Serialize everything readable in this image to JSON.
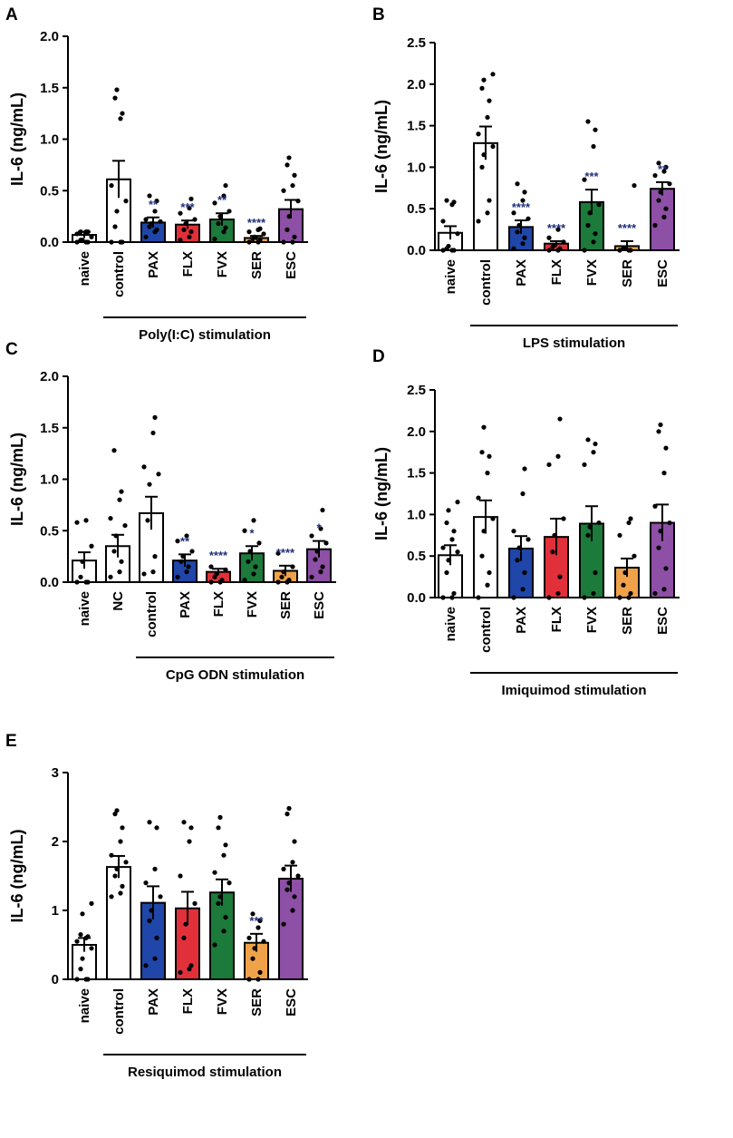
{
  "colors": {
    "naive": "#ffffff",
    "control": "#ffffff",
    "NC": "#ffffff",
    "PAX": "#1f46a8",
    "FLX": "#e2303a",
    "FVX": "#1c7a3a",
    "SER": "#f0a24a",
    "ESC": "#8e4fa6",
    "significance": "#1f2f7a",
    "axis": "#000000"
  },
  "chart_data": [
    {
      "panel": "A",
      "type": "bar",
      "ylabel": "IL-6 (ng/mL)",
      "ylim": [
        0,
        2.0
      ],
      "yticks": [
        "0.0",
        "0.5",
        "1.0",
        "1.5",
        "2.0"
      ],
      "yticks_values": [
        0,
        0.5,
        1.0,
        1.5,
        2.0
      ],
      "categories": [
        "naive",
        "control",
        "PAX",
        "FLX",
        "FVX",
        "SER",
        "ESC"
      ],
      "values": [
        0.07,
        0.61,
        0.19,
        0.17,
        0.22,
        0.04,
        0.32
      ],
      "sem": [
        0.03,
        0.18,
        0.05,
        0.04,
        0.06,
        0.02,
        0.09
      ],
      "significance": [
        "",
        "",
        "**",
        "***",
        "**",
        "****",
        ""
      ],
      "points": [
        [
          0,
          0,
          0,
          0.02,
          0.02,
          0.05,
          0.08,
          0.1,
          0.1,
          0.1
        ],
        [
          0,
          0,
          0,
          0.15,
          0.3,
          0.4,
          0.55,
          1.2,
          1.25,
          1.4,
          1.48
        ],
        [
          0.05,
          0.1,
          0.12,
          0.15,
          0.18,
          0.2,
          0.22,
          0.3,
          0.4,
          0.45
        ],
        [
          0.02,
          0.05,
          0.1,
          0.12,
          0.18,
          0.22,
          0.28,
          0.33,
          0.42
        ],
        [
          0.03,
          0.1,
          0.14,
          0.18,
          0.25,
          0.3,
          0.38,
          0.45,
          0.55
        ],
        [
          0,
          0,
          0.02,
          0.03,
          0.05,
          0.08,
          0.1,
          0.12,
          0.13
        ],
        [
          0,
          0,
          0.05,
          0.12,
          0.25,
          0.4,
          0.5,
          0.55,
          0.65,
          0.75,
          0.82
        ]
      ],
      "stim_label": "Poly(I:C) stimulation",
      "stim_range": [
        1,
        6
      ]
    },
    {
      "panel": "B",
      "type": "bar",
      "ylabel": "IL-6 (ng/mL)",
      "ylim": [
        0,
        2.5
      ],
      "yticks": [
        "0.0",
        "0.5",
        "1.0",
        "1.5",
        "2.0",
        "2.5"
      ],
      "yticks_values": [
        0,
        0.5,
        1.0,
        1.5,
        2.0,
        2.5
      ],
      "categories": [
        "naive",
        "control",
        "PAX",
        "FLX",
        "FVX",
        "SER",
        "ESC"
      ],
      "values": [
        0.21,
        1.29,
        0.28,
        0.08,
        0.58,
        0.05,
        0.74
      ],
      "sem": [
        0.08,
        0.2,
        0.08,
        0.03,
        0.15,
        0.06,
        0.08
      ],
      "significance": [
        "",
        "",
        "****",
        "****",
        "***",
        "****",
        "**"
      ],
      "points": [
        [
          0,
          0,
          0,
          0.02,
          0.05,
          0.2,
          0.35,
          0.55,
          0.58,
          0.6
        ],
        [
          0.35,
          0.45,
          0.6,
          1.0,
          1.15,
          1.25,
          1.4,
          1.6,
          1.8,
          1.95,
          2.05,
          2.12
        ],
        [
          0.02,
          0.08,
          0.15,
          0.22,
          0.3,
          0.38,
          0.45,
          0.6,
          0.7,
          0.8
        ],
        [
          0,
          0,
          0.02,
          0.04,
          0.06,
          0.1,
          0.15,
          0.25
        ],
        [
          0,
          0.1,
          0.2,
          0.3,
          0.45,
          0.55,
          0.85,
          1.25,
          1.45,
          1.55
        ],
        [
          0,
          0,
          0,
          0.02,
          0.03,
          0.78
        ],
        [
          0.3,
          0.4,
          0.5,
          0.6,
          0.7,
          0.8,
          0.9,
          0.95,
          1.0,
          1.05
        ]
      ],
      "stim_label": "LPS stimulation",
      "stim_range": [
        1,
        6
      ]
    },
    {
      "panel": "C",
      "type": "bar",
      "ylabel": "IL-6 (ng/mL)",
      "ylim": [
        0,
        2.0
      ],
      "yticks": [
        "0.0",
        "0.5",
        "1.0",
        "1.5",
        "2.0"
      ],
      "yticks_values": [
        0,
        0.5,
        1.0,
        1.5,
        2.0
      ],
      "categories": [
        "naive",
        "NC",
        "control",
        "PAX",
        "FLX",
        "FVX",
        "SER",
        "ESC"
      ],
      "values": [
        0.21,
        0.35,
        0.67,
        0.21,
        0.1,
        0.28,
        0.11,
        0.32
      ],
      "sem": [
        0.08,
        0.11,
        0.16,
        0.06,
        0.03,
        0.07,
        0.05,
        0.08
      ],
      "significance": [
        "",
        "",
        "",
        "**",
        "****",
        "*",
        "****",
        "*"
      ],
      "points": [
        [
          0,
          0,
          0,
          0.05,
          0.2,
          0.35,
          0.58,
          0.6
        ],
        [
          0.05,
          0.1,
          0.2,
          0.3,
          0.45,
          0.55,
          0.62,
          0.8,
          0.88,
          1.28
        ],
        [
          0.08,
          0.1,
          0.25,
          0.6,
          0.95,
          1.05,
          1.12,
          1.45,
          1.6
        ],
        [
          0.05,
          0.1,
          0.15,
          0.2,
          0.25,
          0.3,
          0.4,
          0.45
        ],
        [
          0,
          0,
          0.02,
          0.05,
          0.08,
          0.12,
          0.15
        ],
        [
          0.02,
          0.08,
          0.15,
          0.2,
          0.3,
          0.38,
          0.5,
          0.6
        ],
        [
          0,
          0,
          0.02,
          0.05,
          0.1,
          0.15,
          0.28
        ],
        [
          0.05,
          0.1,
          0.15,
          0.22,
          0.3,
          0.38,
          0.45,
          0.52,
          0.7
        ]
      ],
      "stim_label": "CpG ODN stimulation",
      "stim_range": [
        2,
        7
      ]
    },
    {
      "panel": "D",
      "type": "bar",
      "ylabel": "IL-6 (ng/mL)",
      "ylim": [
        0,
        2.5
      ],
      "yticks": [
        "0.0",
        "0.5",
        "1.0",
        "1.5",
        "2.0",
        "2.5"
      ],
      "yticks_values": [
        0,
        0.5,
        1.0,
        1.5,
        2.0,
        2.5
      ],
      "categories": [
        "naive",
        "control",
        "PAX",
        "FLX",
        "FVX",
        "SER",
        "ESC"
      ],
      "values": [
        0.51,
        0.97,
        0.59,
        0.73,
        0.89,
        0.36,
        0.9
      ],
      "sem": [
        0.12,
        0.2,
        0.15,
        0.22,
        0.21,
        0.11,
        0.22
      ],
      "significance": [
        "",
        "",
        "",
        "",
        "",
        "",
        ""
      ],
      "points": [
        [
          0,
          0,
          0.05,
          0.3,
          0.45,
          0.55,
          0.6,
          0.7,
          0.8,
          0.9,
          1.05,
          1.15
        ],
        [
          0,
          0.15,
          0.3,
          0.5,
          0.8,
          0.95,
          1.2,
          1.5,
          1.7,
          1.75,
          2.05
        ],
        [
          0,
          0.1,
          0.3,
          0.45,
          0.6,
          0.7,
          0.8,
          1.25,
          1.55
        ],
        [
          0,
          0.05,
          0.25,
          0.55,
          0.75,
          0.95,
          1.6,
          1.7,
          2.15
        ],
        [
          0,
          0.05,
          0.3,
          0.75,
          0.85,
          0.9,
          1.6,
          1.75,
          1.85,
          1.9
        ],
        [
          0,
          0,
          0.05,
          0.15,
          0.3,
          0.5,
          0.75,
          0.9,
          0.95
        ],
        [
          0.05,
          0.1,
          0.35,
          0.6,
          0.8,
          0.9,
          1.1,
          1.5,
          1.8,
          2.0,
          2.08
        ]
      ],
      "stim_label": "Imiquimod stimulation",
      "stim_range": [
        1,
        6
      ]
    },
    {
      "panel": "E",
      "type": "bar",
      "ylabel": "IL-6 (ng/mL)",
      "ylim": [
        0,
        3
      ],
      "yticks": [
        "0",
        "1",
        "2",
        "3"
      ],
      "yticks_values": [
        0,
        1,
        2,
        3
      ],
      "categories": [
        "naive",
        "control",
        "PAX",
        "FLX",
        "FVX",
        "SER",
        "ESC"
      ],
      "values": [
        0.5,
        1.63,
        1.11,
        1.03,
        1.26,
        0.53,
        1.46
      ],
      "sem": [
        0.1,
        0.16,
        0.24,
        0.24,
        0.19,
        0.13,
        0.19
      ],
      "significance": [
        "",
        "",
        "",
        "",
        "",
        "***",
        ""
      ],
      "points": [
        [
          0,
          0,
          0,
          0.15,
          0.3,
          0.45,
          0.55,
          0.6,
          0.62,
          0.65,
          0.95,
          1.1
        ],
        [
          1.2,
          1.25,
          1.35,
          1.5,
          1.6,
          1.7,
          1.8,
          2.0,
          2.2,
          2.4,
          2.45
        ],
        [
          0.2,
          0.3,
          0.6,
          0.85,
          1.0,
          1.2,
          1.4,
          1.6,
          2.2,
          2.28
        ],
        [
          0.1,
          0.15,
          0.2,
          0.6,
          0.8,
          1.1,
          1.5,
          2.0,
          2.2,
          2.28
        ],
        [
          0.5,
          0.7,
          0.9,
          1.1,
          1.2,
          1.4,
          1.55,
          1.8,
          1.95,
          2.2,
          2.35
        ],
        [
          0,
          0,
          0.1,
          0.3,
          0.45,
          0.55,
          0.6,
          0.75,
          0.85,
          0.95
        ],
        [
          0.8,
          1.0,
          1.2,
          1.3,
          1.4,
          1.5,
          1.6,
          1.7,
          2.0,
          2.4,
          2.48
        ]
      ],
      "stim_label": "Resiquimod stimulation",
      "stim_range": [
        1,
        6
      ]
    }
  ]
}
